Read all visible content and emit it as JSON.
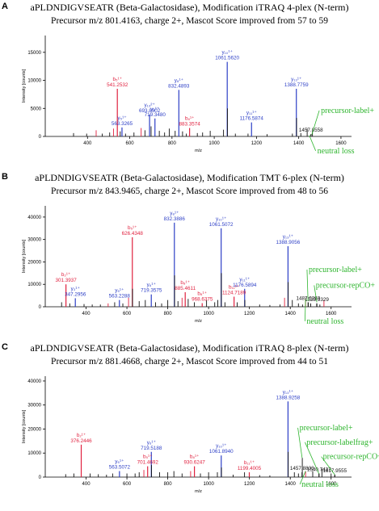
{
  "colors": {
    "b": "#e0213f",
    "y": "#2d3fc6",
    "other": "#111111",
    "annotation": "#2fb52f"
  },
  "panels": [
    {
      "letter": "A",
      "title": "aPLDNDIGVSEATR (Beta-Galactosidase), Modification iTRAQ 4-plex (N-term)",
      "subtitle": "Precursor m/z 801.4163, charge 2+, Mascot Score improved from 57 to 59"
    },
    {
      "letter": "B",
      "title": "aPLDNDIGVSEATR (Beta-Galactosidase), Modification TMT 6-plex (N-term)",
      "subtitle": "Precursor m/z 843.9465, charge 2+, Mascot Score improved from 48 to 56"
    },
    {
      "letter": "C",
      "title": "aPLDNDIGVSEATR (Beta-Galactosidase), Modification iTRAQ 8-plex (N-term)",
      "subtitle": "Precursor m/z 881.4668, charge 2+, Mascot Score improved from 44 to 51"
    }
  ],
  "chart_data": [
    {
      "type": "bar",
      "xlabel": "m/z",
      "ylabel": "Intensity [counts]",
      "xlim": [
        200,
        1650
      ],
      "ylim": [
        0,
        18000
      ],
      "xticks": [
        400,
        600,
        800,
        1000,
        1200,
        1400,
        1600
      ],
      "yticks": [
        0,
        5000,
        10000,
        15000
      ],
      "peaks": [
        {
          "mz": 541.2532,
          "i": 8500,
          "series": "b",
          "ion": "b₅¹⁺",
          "label": "541.2532"
        },
        {
          "mz": 563.3265,
          "i": 1600,
          "series": "y",
          "ion": "y₅¹⁺",
          "label": "563.3265"
        },
        {
          "mz": 693.8502,
          "i": 3900,
          "series": "y",
          "ion": "y₁₃²⁺",
          "label": "693.8502"
        },
        {
          "mz": 719.348,
          "i": 3200,
          "series": "y",
          "ion": "y₆¹⁺",
          "label": "719.3480"
        },
        {
          "mz": 832.4893,
          "i": 8300,
          "series": "y",
          "ion": "y₈¹⁺",
          "label": "832.4893"
        },
        {
          "mz": 883.3574,
          "i": 1500,
          "series": "b",
          "ion": "b₈¹⁺",
          "label": "883.3574"
        },
        {
          "mz": 1061.562,
          "i": 13300,
          "series": "y",
          "ion": "y₁₀¹⁺",
          "label": "1061.5620"
        },
        {
          "mz": 1176.5874,
          "i": 2500,
          "series": "y",
          "ion": "y₁₁¹⁺",
          "label": "1176.5874"
        },
        {
          "mz": 1388.7759,
          "i": 8500,
          "series": "y",
          "ion": "y₁₃¹⁺",
          "label": "1388.7759"
        },
        {
          "mz": 1457.8558,
          "i": 400,
          "series": "other",
          "ion": "",
          "label": "1457.8558"
        },
        {
          "mz": 334,
          "i": 600,
          "series": "other"
        },
        {
          "mz": 396,
          "i": 500,
          "series": "other"
        },
        {
          "mz": 441,
          "i": 1100,
          "series": "b"
        },
        {
          "mz": 470,
          "i": 500,
          "series": "other"
        },
        {
          "mz": 505,
          "i": 700,
          "series": "other"
        },
        {
          "mz": 523,
          "i": 1400,
          "series": "b"
        },
        {
          "mz": 555,
          "i": 900,
          "series": "other"
        },
        {
          "mz": 580,
          "i": 500,
          "series": "other"
        },
        {
          "mz": 620,
          "i": 700,
          "series": "other"
        },
        {
          "mz": 654,
          "i": 1500,
          "series": "b"
        },
        {
          "mz": 672,
          "i": 1100,
          "series": "other"
        },
        {
          "mz": 701,
          "i": 1800,
          "series": "other"
        },
        {
          "mz": 740,
          "i": 1000,
          "series": "other"
        },
        {
          "mz": 765,
          "i": 700,
          "series": "other"
        },
        {
          "mz": 787,
          "i": 1400,
          "series": "other"
        },
        {
          "mz": 815,
          "i": 1000,
          "series": "other"
        },
        {
          "mz": 850,
          "i": 900,
          "series": "other"
        },
        {
          "mz": 868,
          "i": 500,
          "series": "other"
        },
        {
          "mz": 920,
          "i": 600,
          "series": "other"
        },
        {
          "mz": 945,
          "i": 700,
          "series": "other"
        },
        {
          "mz": 981,
          "i": 1000,
          "series": "other"
        },
        {
          "mz": 1044,
          "i": 1200,
          "series": "other"
        },
        {
          "mz": 1062.5,
          "i": 5000,
          "series": "other"
        },
        {
          "mz": 1100,
          "i": 500,
          "series": "other"
        },
        {
          "mz": 1160,
          "i": 500,
          "series": "other"
        },
        {
          "mz": 1250,
          "i": 400,
          "series": "other"
        },
        {
          "mz": 1370,
          "i": 500,
          "series": "other"
        },
        {
          "mz": 1389.8,
          "i": 3300,
          "series": "other"
        },
        {
          "mz": 1410,
          "i": 600,
          "series": "other"
        },
        {
          "mz": 1440,
          "i": 1400,
          "series": "other"
        },
        {
          "mz": 1465,
          "i": 900,
          "series": "other"
        }
      ],
      "annotations": [
        {
          "text": "precursor-label+",
          "x": 1505,
          "y": 4200,
          "tx": 1462,
          "ty": 300
        },
        {
          "text": "neutral loss",
          "x": 1488,
          "y": -3000,
          "tx": 1450,
          "ty": 200
        }
      ]
    },
    {
      "type": "bar",
      "xlabel": "m/z",
      "ylabel": "Intensity [counts]",
      "xlim": [
        200,
        1700
      ],
      "ylim": [
        0,
        45000
      ],
      "xticks": [
        400,
        600,
        800,
        1000,
        1200,
        1400,
        1600
      ],
      "yticks": [
        0,
        10000,
        20000,
        30000,
        40000
      ],
      "peaks": [
        {
          "mz": 301.3937,
          "i": 10000,
          "series": "b",
          "ion": "b₂¹⁺",
          "label": "301.3937"
        },
        {
          "mz": 347.2956,
          "i": 3800,
          "series": "y",
          "ion": "y₃¹⁺",
          "label": "347.2956"
        },
        {
          "mz": 563.2288,
          "i": 3000,
          "series": "y",
          "ion": "y₅¹⁺",
          "label": "563.2288"
        },
        {
          "mz": 626.4348,
          "i": 31000,
          "series": "b",
          "ion": "b₅¹⁺",
          "label": "626.4348"
        },
        {
          "mz": 719.3575,
          "i": 5500,
          "series": "y",
          "ion": "y₆¹⁺",
          "label": "719.3575"
        },
        {
          "mz": 832.3886,
          "i": 37500,
          "series": "y",
          "ion": "y₈¹⁺",
          "label": "832.3886"
        },
        {
          "mz": 885.4611,
          "i": 6500,
          "series": "b",
          "ion": "b₈¹⁺",
          "label": "885.4611"
        },
        {
          "mz": 968.6375,
          "i": 1600,
          "series": "b",
          "ion": "b₈¹⁺",
          "label": "968.6375"
        },
        {
          "mz": 1061.5072,
          "i": 35000,
          "series": "y",
          "ion": "y₁₀¹⁺",
          "label": "1061.5072"
        },
        {
          "mz": 1124.7189,
          "i": 4500,
          "series": "b",
          "ion": "b₁₁¹⁺",
          "label": "1124.7189"
        },
        {
          "mz": 1176.5894,
          "i": 8000,
          "series": "y",
          "ion": "y₁₁¹⁺",
          "label": "1176.5894"
        },
        {
          "mz": 1388.9056,
          "i": 27000,
          "series": "y",
          "ion": "y₁₃¹⁺",
          "label": "1388.9056"
        },
        {
          "mz": 1487.6283,
          "i": 2000,
          "series": "other",
          "ion": "",
          "label": "1487.6283"
        },
        {
          "mz": 1529.9329,
          "i": 1500,
          "series": "other",
          "ion": "",
          "label": "1529.9329"
        },
        {
          "mz": 280,
          "i": 2000,
          "series": "other"
        },
        {
          "mz": 320,
          "i": 1500,
          "series": "other"
        },
        {
          "mz": 390,
          "i": 1200,
          "series": "other"
        },
        {
          "mz": 430,
          "i": 1000,
          "series": "other"
        },
        {
          "mz": 470,
          "i": 1000,
          "series": "other"
        },
        {
          "mz": 508,
          "i": 1500,
          "series": "b"
        },
        {
          "mz": 540,
          "i": 2000,
          "series": "other"
        },
        {
          "mz": 580,
          "i": 1500,
          "series": "other"
        },
        {
          "mz": 608,
          "i": 4000,
          "series": "b"
        },
        {
          "mz": 627.4,
          "i": 8000,
          "series": "other"
        },
        {
          "mz": 660,
          "i": 2500,
          "series": "other"
        },
        {
          "mz": 690,
          "i": 3000,
          "series": "other"
        },
        {
          "mz": 740,
          "i": 2000,
          "series": "other"
        },
        {
          "mz": 770,
          "i": 1500,
          "series": "other"
        },
        {
          "mz": 800,
          "i": 3000,
          "series": "other"
        },
        {
          "mz": 833.4,
          "i": 14000,
          "series": "other"
        },
        {
          "mz": 850,
          "i": 2500,
          "series": "other"
        },
        {
          "mz": 870,
          "i": 4000,
          "series": "b"
        },
        {
          "mz": 900,
          "i": 3500,
          "series": "other"
        },
        {
          "mz": 930,
          "i": 2000,
          "series": "other"
        },
        {
          "mz": 990,
          "i": 3000,
          "series": "other"
        },
        {
          "mz": 1030,
          "i": 2000,
          "series": "other"
        },
        {
          "mz": 1045,
          "i": 3000,
          "series": "other"
        },
        {
          "mz": 1062.5,
          "i": 15000,
          "series": "other"
        },
        {
          "mz": 1080,
          "i": 2000,
          "series": "other"
        },
        {
          "mz": 1140,
          "i": 2000,
          "series": "other"
        },
        {
          "mz": 1177.6,
          "i": 3000,
          "series": "other"
        },
        {
          "mz": 1250,
          "i": 1000,
          "series": "other"
        },
        {
          "mz": 1300,
          "i": 800,
          "series": "other"
        },
        {
          "mz": 1350,
          "i": 1000,
          "series": "other"
        },
        {
          "mz": 1372,
          "i": 4000,
          "series": "b"
        },
        {
          "mz": 1389.9,
          "i": 11000,
          "series": "other"
        },
        {
          "mz": 1410,
          "i": 3000,
          "series": "other"
        },
        {
          "mz": 1440,
          "i": 1500,
          "series": "other"
        },
        {
          "mz": 1460,
          "i": 1000,
          "series": "other"
        },
        {
          "mz": 1475,
          "i": 3500,
          "series": "b"
        },
        {
          "mz": 1500,
          "i": 1500,
          "series": "other"
        },
        {
          "mz": 1545,
          "i": 1000,
          "series": "other"
        },
        {
          "mz": 1565,
          "i": 3000,
          "series": "b"
        }
      ],
      "annotations": [
        {
          "text": "precursor-label+",
          "x": 1490,
          "y": 15500,
          "tx": 1487,
          "ty": 2500
        },
        {
          "text": "precursor-repCO+",
          "x": 1525,
          "y": 8500,
          "tx": 1530,
          "ty": 2000
        },
        {
          "text": "neutral loss",
          "x": 1480,
          "y": -7500,
          "tx": 1475,
          "ty": 3500
        }
      ]
    },
    {
      "type": "bar",
      "xlabel": "m/z",
      "ylabel": "Intensity [counts]",
      "xlim": [
        200,
        1700
      ],
      "ylim": [
        0,
        42000
      ],
      "xticks": [
        400,
        600,
        800,
        1000,
        1200,
        1400,
        1600
      ],
      "yticks": [
        0,
        10000,
        20000,
        30000,
        40000
      ],
      "peaks": [
        {
          "mz": 376.2446,
          "i": 13500,
          "series": "b",
          "ion": "b₂¹⁺",
          "label": "376.2446"
        },
        {
          "mz": 563.5072,
          "i": 2500,
          "series": "y",
          "ion": "y₅¹⁺",
          "label": "563.5072"
        },
        {
          "mz": 701.4692,
          "i": 4500,
          "series": "b",
          "ion": "b₅¹⁺",
          "label": "701.4692"
        },
        {
          "mz": 719.5188,
          "i": 10500,
          "series": "y",
          "ion": "y₆¹⁺",
          "label": "719.5188"
        },
        {
          "mz": 930.6247,
          "i": 4500,
          "series": "b",
          "ion": "b₈¹⁺",
          "label": "930.6247"
        },
        {
          "mz": 1061.894,
          "i": 9000,
          "series": "y",
          "ion": "y₁₀¹⁺",
          "label": "1061.8940"
        },
        {
          "mz": 1199.4005,
          "i": 2000,
          "series": "b",
          "ion": "b₁₁¹⁺",
          "label": "1199.4005"
        },
        {
          "mz": 1388.9258,
          "i": 31500,
          "series": "y",
          "ion": "y₁₃¹⁺",
          "label": "1388.9258"
        },
        {
          "mz": 1457.8833,
          "i": 2000,
          "series": "other",
          "ion": "",
          "label": "1457.8833"
        },
        {
          "mz": 1540.7437,
          "i": 1500,
          "series": "other",
          "ion": "",
          "label": "1540.7437"
        },
        {
          "mz": 1617.9555,
          "i": 1000,
          "series": "other",
          "ion": "",
          "label": "1617.9555"
        },
        {
          "mz": 300,
          "i": 1200,
          "series": "other"
        },
        {
          "mz": 340,
          "i": 1500,
          "series": "other"
        },
        {
          "mz": 420,
          "i": 1500,
          "series": "other"
        },
        {
          "mz": 460,
          "i": 1200,
          "series": "other"
        },
        {
          "mz": 500,
          "i": 1000,
          "series": "other"
        },
        {
          "mz": 530,
          "i": 1500,
          "series": "other"
        },
        {
          "mz": 600,
          "i": 1500,
          "series": "other"
        },
        {
          "mz": 640,
          "i": 1500,
          "series": "other"
        },
        {
          "mz": 660,
          "i": 2000,
          "series": "other"
        },
        {
          "mz": 683,
          "i": 3000,
          "series": "b"
        },
        {
          "mz": 720.5,
          "i": 5000,
          "series": "other"
        },
        {
          "mz": 760,
          "i": 2000,
          "series": "other"
        },
        {
          "mz": 800,
          "i": 2000,
          "series": "other"
        },
        {
          "mz": 830,
          "i": 2500,
          "series": "other"
        },
        {
          "mz": 870,
          "i": 1500,
          "series": "other"
        },
        {
          "mz": 912,
          "i": 2500,
          "series": "b"
        },
        {
          "mz": 960,
          "i": 1500,
          "series": "other"
        },
        {
          "mz": 1000,
          "i": 2000,
          "series": "other"
        },
        {
          "mz": 1043,
          "i": 2000,
          "series": "other"
        },
        {
          "mz": 1063,
          "i": 4000,
          "series": "other"
        },
        {
          "mz": 1120,
          "i": 1000,
          "series": "other"
        },
        {
          "mz": 1176,
          "i": 2000,
          "series": "other"
        },
        {
          "mz": 1250,
          "i": 800,
          "series": "other"
        },
        {
          "mz": 1300,
          "i": 700,
          "series": "other"
        },
        {
          "mz": 1390,
          "i": 10500,
          "series": "other"
        },
        {
          "mz": 1420,
          "i": 2000,
          "series": "other"
        },
        {
          "mz": 1440,
          "i": 1500,
          "series": "other"
        },
        {
          "mz": 1458.9,
          "i": 8000,
          "series": "other"
        },
        {
          "mz": 1475,
          "i": 2500,
          "series": "b"
        },
        {
          "mz": 1510,
          "i": 2500,
          "series": "other"
        },
        {
          "mz": 1555,
          "i": 3500,
          "series": "other"
        },
        {
          "mz": 1600,
          "i": 1500,
          "series": "other"
        }
      ],
      "annotations": [
        {
          "text": "precursor-label+",
          "x": 1445,
          "y": 19500,
          "tx": 1458,
          "ty": 8000
        },
        {
          "text": "precursor-labelfrag+",
          "x": 1480,
          "y": 13500,
          "tx": 1540,
          "ty": 1500
        },
        {
          "text": "precursor-repCO+",
          "x": 1560,
          "y": 7500,
          "tx": 1618,
          "ty": 1000
        },
        {
          "text": "neutral loss",
          "x": 1455,
          "y": -4000,
          "tx": 1475,
          "ty": 2500
        }
      ]
    }
  ]
}
